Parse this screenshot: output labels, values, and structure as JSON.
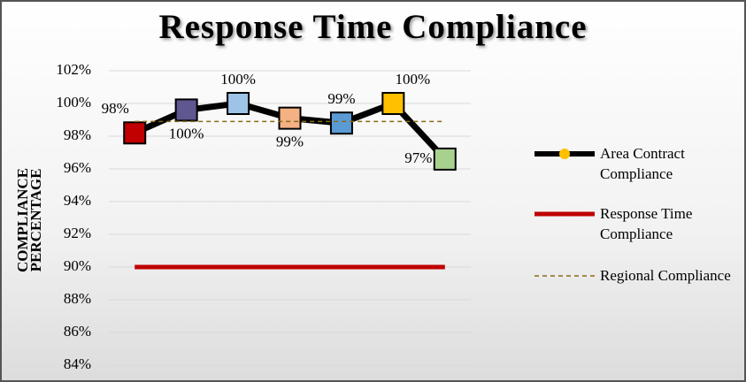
{
  "chart_data": {
    "type": "line",
    "title": "Response Time Compliance",
    "y_axis_label": "COMPLIANCE PERCENTAGE",
    "categories": [
      null,
      null,
      null,
      null,
      null,
      null,
      null
    ],
    "ylim": [
      84,
      102
    ],
    "yticks": [
      {
        "value": 84,
        "label": "84%"
      },
      {
        "value": 86,
        "label": "86%"
      },
      {
        "value": 88,
        "label": "88%"
      },
      {
        "value": 90,
        "label": "90%"
      },
      {
        "value": 92,
        "label": "92%"
      },
      {
        "value": 94,
        "label": "94%"
      },
      {
        "value": 96,
        "label": "96%"
      },
      {
        "value": 98,
        "label": "98%"
      },
      {
        "value": 100,
        "label": "100%"
      },
      {
        "value": 102,
        "label": "102%"
      }
    ],
    "grid": true,
    "legend": "right",
    "series": [
      {
        "name": "Area Contract Compliance",
        "color": "#000000",
        "legend_marker_color": "#ffc000",
        "marker_colors": [
          "#c00000",
          "#5f5790",
          "#9dc3e6",
          "#f4b183",
          "#5b9bd5",
          "#ffc000",
          "#a9d18e"
        ],
        "values": [
          98.2,
          99.6,
          100,
          99.1,
          98.8,
          100,
          96.6
        ],
        "value_labels": [
          "98%",
          "100%",
          "100%",
          "99%",
          "99%",
          "100%",
          "97%"
        ]
      },
      {
        "name": "Response Time Compliance",
        "color": "#c00000",
        "values": [
          90,
          90,
          90,
          90,
          90,
          90,
          90
        ]
      },
      {
        "name": "Regional Compliance",
        "color": "#8b6914",
        "dashed": true,
        "values": [
          98.9,
          98.9,
          98.9,
          98.9,
          98.9,
          98.9,
          98.9
        ]
      }
    ]
  }
}
